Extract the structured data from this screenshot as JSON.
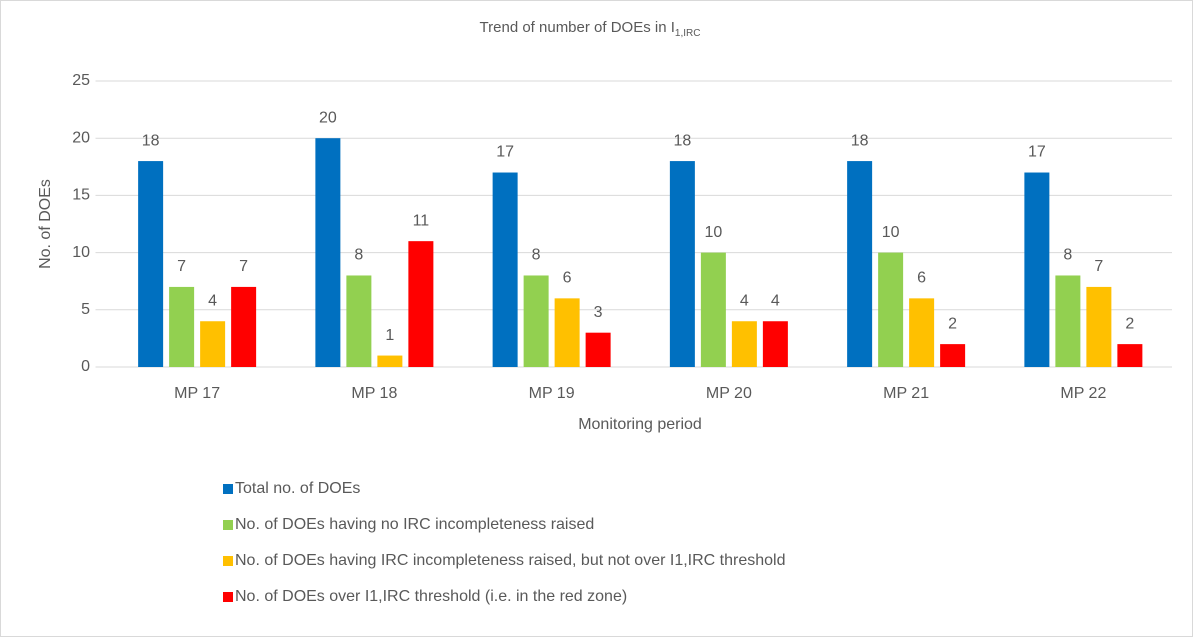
{
  "chart_data": {
    "type": "bar",
    "title": "Trend of number of DOEs in I",
    "title_subscript": "1,IRC",
    "x_label": "Monitoring period",
    "y_label": "No. of DOEs",
    "categories": [
      "MP 17",
      "MP 18",
      "MP 19",
      "MP 20",
      "MP 21",
      "MP 22"
    ],
    "series": [
      {
        "name": "Total no. of DOEs",
        "color": "#0070c0",
        "values": [
          18,
          20,
          17,
          18,
          18,
          17
        ]
      },
      {
        "name": "No. of DOEs having no IRC incompleteness raised",
        "color": "#92d050",
        "values": [
          7,
          8,
          8,
          10,
          10,
          8
        ]
      },
      {
        "name": "No. of DOEs having IRC incompleteness raised, but not over I1,IRC threshold",
        "color": "#ffc000",
        "values": [
          4,
          1,
          6,
          4,
          6,
          7
        ]
      },
      {
        "name": "No. of DOEs over I1,IRC threshold (i.e. in the red zone)",
        "color": "#ff0000",
        "values": [
          7,
          11,
          3,
          4,
          2,
          2
        ]
      }
    ],
    "ylim": [
      0,
      25
    ],
    "yticks": [
      0,
      5,
      10,
      15,
      20,
      25
    ],
    "grid": true,
    "legend": "bottom"
  }
}
